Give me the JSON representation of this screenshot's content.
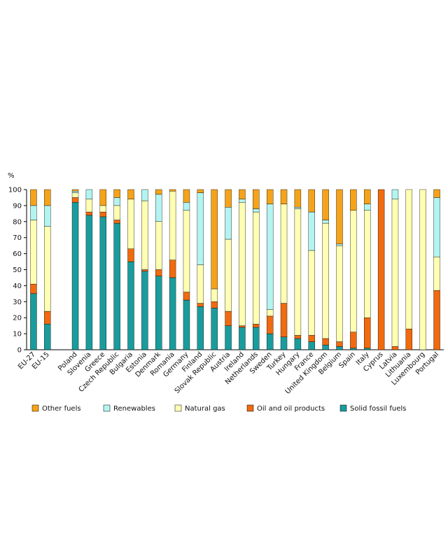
{
  "chart_data": {
    "type": "bar",
    "stacked": true,
    "ylabel": "%",
    "ylim": [
      0,
      100
    ],
    "yticks": [
      0,
      10,
      20,
      30,
      40,
      50,
      60,
      70,
      80,
      90,
      100
    ],
    "grid": false,
    "legend_position": "bottom",
    "categories": [
      "EU-27",
      "EU-15",
      "",
      "Poland",
      "Slovenia",
      "Greece",
      "Czech Republic",
      "Bulgaria",
      "Estonia",
      "Denmark",
      "Romania",
      "Germany",
      "Finland",
      "Slovak Republic",
      "Austria",
      "Ireland",
      "Netherlands",
      "Sweden",
      "Turkey",
      "Hungary",
      "France",
      "United Kingdom",
      "Belgium",
      "Spain",
      "Italy",
      "Cyprus",
      "Latvia",
      "Lithuania",
      "Luxembourg",
      "Portugal"
    ],
    "series": [
      {
        "name": "Solid fossil fuels",
        "color": "#1a9c9c",
        "values": [
          35,
          16,
          0,
          92,
          84,
          83,
          79,
          55,
          49,
          46,
          45,
          31,
          27,
          26,
          15,
          14,
          14,
          10,
          8,
          7,
          5,
          3,
          2,
          1,
          1,
          0,
          0,
          0,
          0,
          0
        ]
      },
      {
        "name": "Oil and oil products",
        "color": "#f06a0f",
        "values": [
          6,
          8,
          0,
          3,
          2,
          3,
          2,
          8,
          1,
          4,
          11,
          5,
          2,
          4,
          9,
          1,
          2,
          11,
          21,
          2,
          4,
          4,
          3,
          10,
          19,
          100,
          2,
          13,
          0,
          37
        ]
      },
      {
        "name": "Natural gas",
        "color": "#ffffb3",
        "values": [
          40,
          53,
          0,
          3,
          8,
          4,
          9,
          31,
          43,
          30,
          43,
          51,
          24,
          8,
          45,
          77,
          70,
          4,
          62,
          79,
          53,
          72,
          60,
          76,
          67,
          0,
          92,
          87,
          100,
          21
        ]
      },
      {
        "name": "Renewables",
        "color": "#b3f4f0",
        "values": [
          9,
          13,
          0,
          1,
          6,
          0,
          5,
          0,
          7,
          17,
          0,
          5,
          45,
          0,
          20,
          2,
          2,
          66,
          0,
          1,
          24,
          2,
          1,
          0,
          4,
          0,
          6,
          0,
          0,
          37
        ]
      },
      {
        "name": "Other fuels",
        "color": "#f5a31a",
        "values": [
          10,
          10,
          0,
          1,
          0,
          10,
          5,
          6,
          0,
          3,
          1,
          8,
          2,
          62,
          11,
          6,
          12,
          9,
          9,
          11,
          14,
          19,
          34,
          13,
          9,
          0,
          0,
          0,
          0,
          5
        ]
      }
    ],
    "legend_order": [
      "Other fuels",
      "Renewables",
      "Natural gas",
      "Oil and oil products",
      "Solid fossil fuels"
    ]
  }
}
